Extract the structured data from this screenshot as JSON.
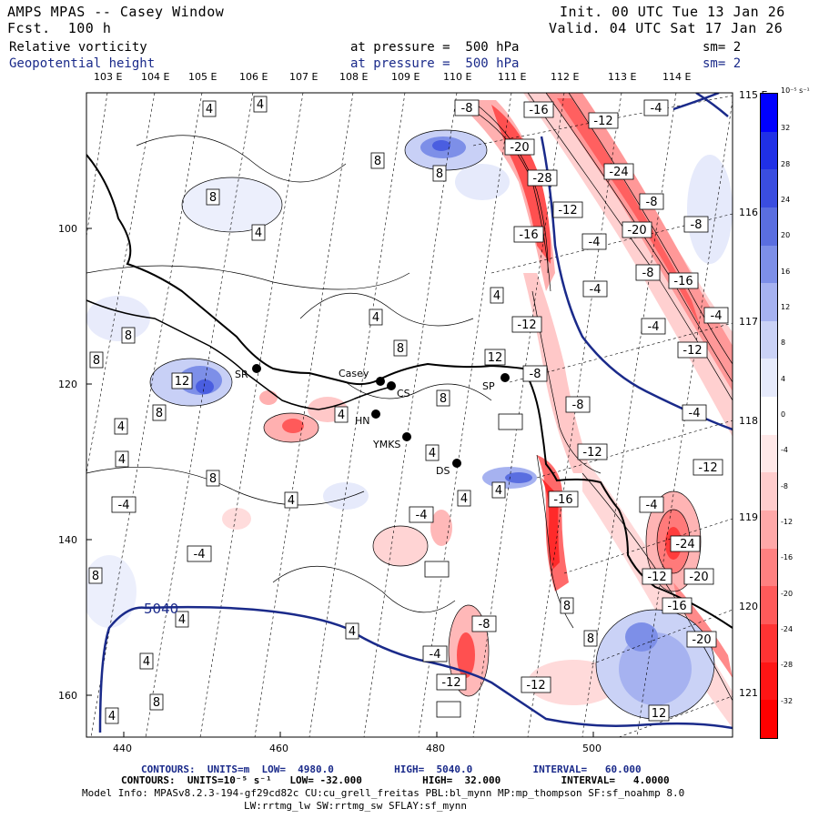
{
  "header": {
    "title": "AMPS MPAS -- Casey Window",
    "forecast": "Fcst.  100 h",
    "init": "Init. 00 UTC Tue 13 Jan 26",
    "valid": "Valid. 04 UTC Sat 17 Jan 26",
    "field1_name": "Relative vorticity",
    "field1_level": "at pressure =  500 hPa",
    "field1_sm": "sm= 2",
    "field2_name": "Geopotential height",
    "field2_level": "at pressure =  500 hPa",
    "field2_sm": "sm= 2"
  },
  "axes": {
    "top_lon_labels": [
      "103 E",
      "104 E",
      "105 E",
      "106 E",
      "107 E",
      "108 E",
      "109 E",
      "110 E",
      "111 E",
      "112 E",
      "113 E",
      "114 E"
    ],
    "right_lon_labels": [
      "115 E",
      "116 E",
      "117 E",
      "118 E",
      "119 E",
      "120 E",
      "121 E"
    ],
    "left_y_labels": [
      "100",
      "120",
      "140",
      "160"
    ],
    "bottom_x_labels": [
      "440",
      "460",
      "480",
      "500"
    ]
  },
  "stations": [
    {
      "label": "SR"
    },
    {
      "label": "Casey"
    },
    {
      "label": "CS"
    },
    {
      "label": "HN"
    },
    {
      "label": "YMKS"
    },
    {
      "label": "DS"
    },
    {
      "label": "SP"
    }
  ],
  "height_contour_label": "5040",
  "contour_labels": {
    "positive": [
      "4",
      "4",
      "8",
      "4",
      "8",
      "8",
      "4",
      "4",
      "8",
      "8",
      "12",
      "8",
      "8",
      "12",
      "8",
      "4",
      "4",
      "8",
      "4",
      "4",
      "4",
      "4",
      "8",
      "8",
      "8",
      "4",
      "4",
      "4",
      "8",
      "4",
      "4",
      "12"
    ],
    "negative": [
      "-8",
      "-16",
      "-12",
      "-4",
      "-20",
      "-28",
      "-24",
      "-8",
      "-12",
      "-16",
      "-20",
      "-8",
      "-4",
      "-4",
      "-8",
      "-16",
      "-4",
      "-12",
      "-4",
      "-12",
      "-8",
      "-8",
      "-4",
      "-12",
      "-16",
      "-4",
      "-24",
      "-12",
      "-20",
      "-16",
      "-20",
      "-4",
      "-8",
      "-4",
      "-12",
      "-12",
      "-4",
      "-4",
      "-12"
    ]
  },
  "colorbar": {
    "unit": "10⁻⁵ s⁻¹",
    "labels": [
      "32",
      "28",
      "24",
      "20",
      "16",
      "12",
      "8",
      "4",
      "0",
      "-4",
      "-8",
      "-12",
      "-16",
      "-20",
      "-24",
      "-28",
      "-32"
    ],
    "colors": [
      "#0000ff",
      "#2030e6",
      "#3a4de0",
      "#5a6ee0",
      "#7d8fe8",
      "#a6b2f0",
      "#cad2f6",
      "#e6eafb",
      "#ffffff",
      "#ffe8e8",
      "#ffcccc",
      "#ffa8a8",
      "#ff8080",
      "#ff5a5a",
      "#ff3333",
      "#ff1515",
      "#ff0000"
    ]
  },
  "footer": {
    "line1": "CONTOURS:  UNITS=m  LOW=  4980.0          HIGH=  5040.0          INTERVAL=   60.000",
    "line2": "CONTOURS:  UNITS=10⁻⁵ s⁻¹   LOW= -32.000          HIGH=  32.000          INTERVAL=   4.0000",
    "line3": "Model Info: MPASv8.2.3-194-gf29cd82c CU:cu_grell_freitas PBL:bl_mynn MP:mp_thompson SF:sf_noahmp 8.0",
    "line4": "LW:rrtmg_lw SW:rrtmg_sw SFLAY:sf_mynn"
  }
}
